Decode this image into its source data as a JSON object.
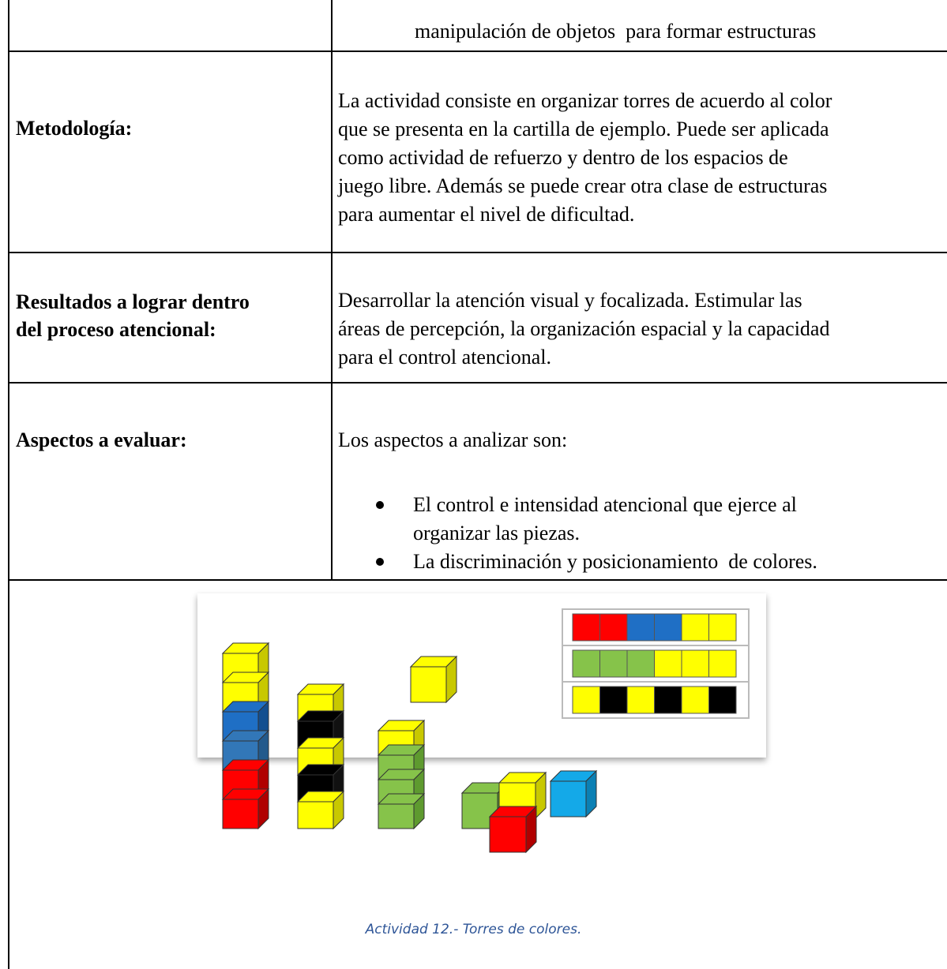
{
  "table": {
    "continuation": "manipulación de objetos  para formar estructuras",
    "rows": [
      {
        "label": [
          "Metodología:"
        ],
        "text": [
          "La actividad consiste en organizar torres de acuerdo al color",
          "que se presenta en la cartilla de ejemplo. Puede ser aplicada",
          "como actividad de refuerzo y dentro de los espacios de",
          "juego libre. Además se puede crear otra clase de estructuras",
          "para aumentar el nivel de dificultad."
        ]
      },
      {
        "label": [
          "Resultados a lograr dentro",
          "del proceso atencional:"
        ],
        "text": [
          "Desarrollar la atención visual y focalizada. Estimular las",
          "áreas de percepción, la organización espacial y la capacidad",
          "para el control atencional."
        ]
      },
      {
        "label": [
          "Aspectos a evaluar:"
        ],
        "text": [
          "Los aspectos a analizar son:"
        ],
        "bullets": [
          [
            "El control e intensidad atencional que ejerce al",
            "organizar las piezas."
          ],
          [
            "La discriminación y posicionamiento  de colores."
          ]
        ]
      }
    ],
    "caption": "Actividad 12.- Torres de colores."
  }
}
